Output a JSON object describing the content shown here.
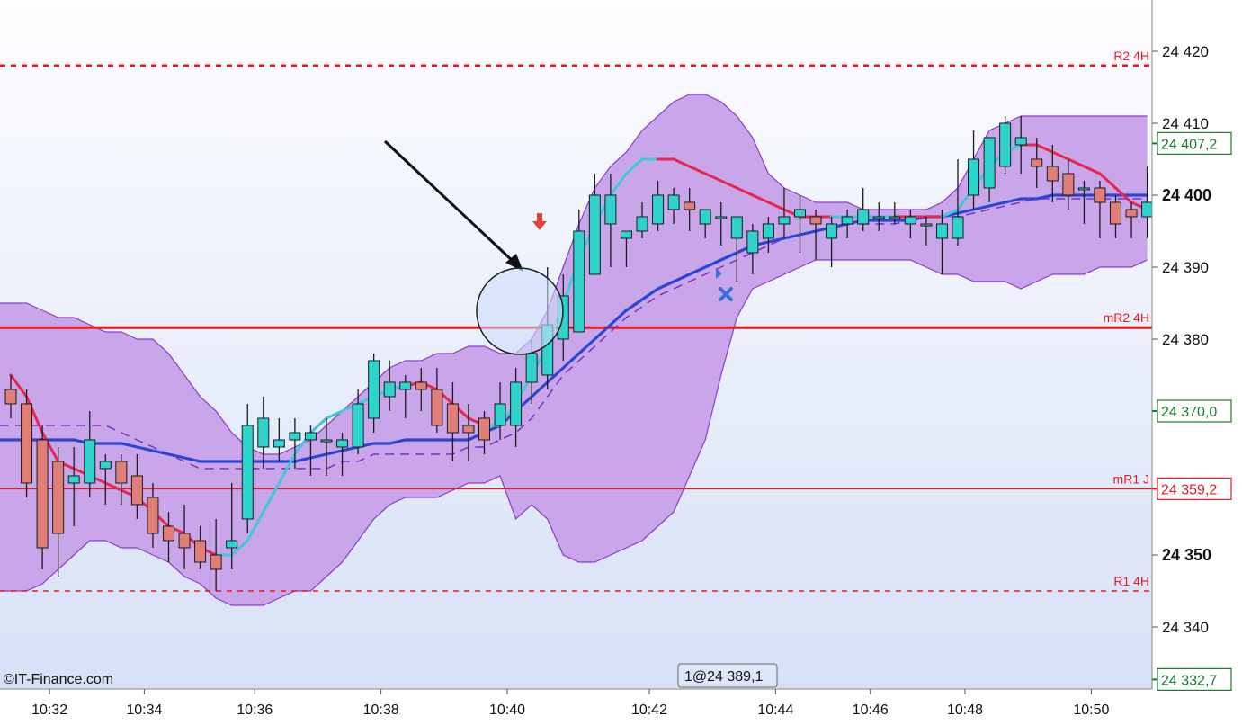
{
  "watermark": "©IT-Finance.com",
  "order_label": "1@24 389,1",
  "colors": {
    "bg_top": "#fdfdff",
    "bg_bottom": "#d6e1f6",
    "band_fill": "#c9a6ea",
    "band_edge": "#8c3cc8",
    "up_candle": "#2fd3cc",
    "down_candle": "#e07f78",
    "ma_blue": "#2b45d6",
    "ma_dash": "#7b2fbf",
    "ma_up": "#40c8d8",
    "ma_down": "#e8274f",
    "level_red": "#e31b23",
    "badge_green": "#1a7a2a"
  },
  "levels": [
    {
      "label": "R2 4H",
      "price": 24418,
      "style": "dashed",
      "weight": 3
    },
    {
      "label": "mR2 4H",
      "price": 24381.6,
      "style": "solid",
      "weight": 3
    },
    {
      "label": "mR1 J",
      "price": 24359.2,
      "style": "solid",
      "weight": 1.5
    },
    {
      "label": "R1 4H",
      "price": 24345,
      "style": "dashed",
      "weight": 1.5
    }
  ],
  "price_badges": [
    {
      "text": "24 407,2",
      "price": 24407.2
    },
    {
      "text": "24 370,0",
      "price": 24370.0
    },
    {
      "text": "24 359,2",
      "price": 24359.2,
      "color": "red"
    },
    {
      "text": "24 332,7",
      "price": 24332.7
    }
  ],
  "chart_data": {
    "type": "candlestick",
    "ylim": [
      24328,
      24428
    ],
    "y_ticks": [
      {
        "price": 24420,
        "label": "24 420",
        "bold": false
      },
      {
        "price": 24410,
        "label": "24 410",
        "bold": false
      },
      {
        "price": 24400,
        "label": "24 400",
        "bold": true
      },
      {
        "price": 24390,
        "label": "24 390",
        "bold": false
      },
      {
        "price": 24380,
        "label": "24 380",
        "bold": false
      },
      {
        "price": 24350,
        "label": "24 350",
        "bold": true
      },
      {
        "price": 24340,
        "label": "24 340",
        "bold": false
      }
    ],
    "x_ticks": [
      {
        "index": 2,
        "label": "10:32"
      },
      {
        "index": 8,
        "label": "10:34"
      },
      {
        "index": 15,
        "label": "10:36"
      },
      {
        "index": 23,
        "label": "10:38"
      },
      {
        "index": 31,
        "label": "10:40"
      },
      {
        "index": 40,
        "label": "10:42"
      },
      {
        "index": 48,
        "label": "10:44"
      },
      {
        "index": 54,
        "label": "10:46"
      },
      {
        "index": 60,
        "label": "10:48"
      },
      {
        "index": 68,
        "label": "10:50"
      }
    ],
    "candles": [
      [
        24373,
        24375,
        24369,
        24371
      ],
      [
        24371,
        24373,
        24358,
        24360
      ],
      [
        24366,
        24368,
        24348,
        24351
      ],
      [
        24363,
        24365,
        24347,
        24353
      ],
      [
        24360,
        24365,
        24354,
        24361
      ],
      [
        24360,
        24370,
        24358,
        24366
      ],
      [
        24362,
        24364,
        24357,
        24363
      ],
      [
        24363,
        24364,
        24357,
        24360
      ],
      [
        24361,
        24364,
        24355,
        24357
      ],
      [
        24358,
        24360,
        24351,
        24353
      ],
      [
        24354,
        24356,
        24349,
        24352
      ],
      [
        24353,
        24357,
        24348,
        24351
      ],
      [
        24352,
        24354,
        24348,
        24349
      ],
      [
        24350,
        24355,
        24345,
        24348
      ],
      [
        24351,
        24360,
        24348,
        24352
      ],
      [
        24355,
        24371,
        24353,
        24368
      ],
      [
        24365,
        24372,
        24362,
        24369
      ],
      [
        24365,
        24369,
        24363,
        24366
      ],
      [
        24366,
        24369,
        24362,
        24367
      ],
      [
        24366,
        24368,
        24361,
        24367
      ],
      [
        24366,
        24369,
        24361,
        24366
      ],
      [
        24365,
        24367,
        24361,
        24366
      ],
      [
        24365,
        24373,
        24364,
        24371
      ],
      [
        24369,
        24378,
        24367,
        24377
      ],
      [
        24372,
        24377,
        24370,
        24374
      ],
      [
        24373,
        24375,
        24369,
        24374
      ],
      [
        24374,
        24376,
        24370,
        24373
      ],
      [
        24373,
        24376,
        24367,
        24368
      ],
      [
        24371,
        24374,
        24363,
        24367
      ],
      [
        24368,
        24371,
        24363,
        24367
      ],
      [
        24369,
        24370,
        24364,
        24366
      ],
      [
        24368,
        24374,
        24366,
        24371
      ],
      [
        24368,
        24376,
        24365,
        24374
      ],
      [
        24374,
        24380,
        24371,
        24378
      ],
      [
        24375,
        24390,
        24373,
        24382
      ],
      [
        24380,
        24389,
        24377,
        24386
      ],
      [
        24381,
        24398,
        24381,
        24395
      ],
      [
        24389,
        24403,
        24389,
        24400
      ],
      [
        24396,
        24403,
        24390,
        24400
      ],
      [
        24394,
        24395,
        24390,
        24395
      ],
      [
        24395,
        24399,
        24394,
        24397
      ],
      [
        24396,
        24402,
        24395,
        24400
      ],
      [
        24398,
        24401,
        24396,
        24400
      ],
      [
        24399,
        24401,
        24395,
        24398
      ],
      [
        24396,
        24398,
        24394,
        24398
      ],
      [
        24397,
        24399,
        24393,
        24397
      ],
      [
        24394,
        24396,
        24388,
        24397
      ],
      [
        24392,
        24396,
        24389,
        24395
      ],
      [
        24394,
        24397,
        24392,
        24396
      ],
      [
        24396,
        24401,
        24394,
        24397
      ],
      [
        24397,
        24400,
        24392,
        24398
      ],
      [
        24397,
        24398,
        24391,
        24396
      ],
      [
        24394,
        24397,
        24390,
        24396
      ],
      [
        24396,
        24398,
        24394,
        24397
      ],
      [
        24396,
        24401,
        24395,
        24398
      ],
      [
        24397,
        24399,
        24395,
        24397
      ],
      [
        24397,
        24399,
        24396,
        24397
      ],
      [
        24396,
        24398,
        24394,
        24397
      ],
      [
        24396,
        24397,
        24393,
        24396
      ],
      [
        24394,
        24398,
        24389,
        24396
      ],
      [
        24394,
        24405,
        24393,
        24397
      ],
      [
        24400,
        24409,
        24398,
        24405
      ],
      [
        24401,
        24408,
        24399,
        24408
      ],
      [
        24404,
        24411,
        24403,
        24410
      ],
      [
        24407,
        24411,
        24403,
        24408
      ],
      [
        24405,
        24408,
        24401,
        24404
      ],
      [
        24404,
        24407,
        24399,
        24402
      ],
      [
        24403,
        24405,
        24398,
        24400
      ],
      [
        24401,
        24402,
        24396,
        24401
      ],
      [
        24401,
        24402,
        24394,
        24399
      ],
      [
        24399,
        24400,
        24394,
        24396
      ],
      [
        24398,
        24399,
        24394,
        24397
      ],
      [
        24397,
        24404,
        24394,
        24399
      ]
    ],
    "bollinger_upper": [
      24385,
      24385,
      24384,
      24383,
      24383,
      24382,
      24381,
      24381,
      24380,
      24380,
      24378,
      24375,
      24372,
      24370,
      24367,
      24365,
      24364,
      24364,
      24365,
      24366,
      24368,
      24370,
      24372,
      24374,
      24376,
      24377,
      24377,
      24378,
      24378,
      24379,
      24379,
      24378,
      24378,
      24380,
      24384,
      24390,
      24396,
      24401,
      24404,
      24406,
      24409,
      24411,
      24413,
      24414,
      24414,
      24413,
      24411,
      24408,
      24403,
      24401,
      24400,
      24399,
      24399,
      24399,
      24398,
      24398,
      24398,
      24398,
      24398,
      24399,
      24401,
      24405,
      24409,
      24410,
      24411,
      24411,
      24411,
      24411,
      24411,
      24411,
      24411,
      24411,
      24411
    ],
    "bollinger_lower": [
      24345,
      24345,
      24346,
      24348,
      24350,
      24352,
      24352,
      24351,
      24351,
      24350,
      24349,
      24347,
      24346,
      24344,
      24343,
      24343,
      24343,
      24344,
      24345,
      24345,
      24347,
      24349,
      24352,
      24355,
      24357,
      24358,
      24358,
      24358,
      24359,
      24360,
      24360,
      24361,
      24355,
      24357,
      24355,
      24350,
      24349,
      24349,
      24350,
      24351,
      24352,
      24354,
      24356,
      24361,
      24366,
      24375,
      24383,
      24387,
      24388,
      24389,
      24390,
      24391,
      24391,
      24391,
      24391,
      24391,
      24391,
      24391,
      24390,
      24389,
      24389,
      24388,
      24388,
      24388,
      24387,
      24388,
      24389,
      24389,
      24389,
      24390,
      24390,
      24390,
      24391
    ],
    "ma_blue": [
      24366,
      24366,
      24366,
      24366,
      24366,
      24365.5,
      24365.5,
      24365.5,
      24365,
      24364.5,
      24364,
      24363.5,
      24363,
      24363,
      24363,
      24363,
      24363,
      24363,
      24363,
      24363.5,
      24364,
      24364.5,
      24365,
      24365.5,
      24365.5,
      24366,
      24366,
      24366,
      24366,
      24366,
      24367,
      24368,
      24370,
      24372,
      24374,
      24376,
      24378,
      24380,
      24382,
      24384,
      24385.5,
      24387,
      24388,
      24389,
      24390,
      24391,
      24392,
      24393,
      24393.5,
      24394,
      24394.5,
      24395,
      24395.5,
      24396,
      24396.5,
      24396.5,
      24396.5,
      24396.5,
      24397,
      24397,
      24397.5,
      24398,
      24398.5,
      24399,
      24399.5,
      24399.5,
      24400,
      24400,
      24400,
      24400,
      24400,
      24400,
      24400
    ],
    "ma_dashed": [
      24368,
      24368,
      24368,
      24368,
      24368,
      24368,
      24368,
      24367,
      24366,
      24365,
      24364,
      24363,
      24362,
      24362,
      24362,
      24362,
      24362,
      24362,
      24362,
      24362,
      24362,
      24363,
      24363,
      24364,
      24364,
      24364,
      24364,
      24364,
      24364,
      24365,
      24365,
      24366,
      24367,
      24369,
      24372,
      24375,
      24377,
      24379,
      24381,
      24383,
      24384.5,
      24386,
      24387,
      24388,
      24389,
      24390,
      24391,
      24392,
      24393,
      24394,
      24394.5,
      24395,
      24395.5,
      24396,
      24396,
      24396,
      24396,
      24396.5,
      24397,
      24397,
      24397,
      24397.5,
      24398,
      24398.5,
      24399,
      24399.5,
      24399.5,
      24399.5,
      24399.5,
      24399.5,
      24399.5,
      24399.5,
      24399.5
    ],
    "ma_fast": [
      24375,
      24372,
      24367,
      24363,
      24362,
      24361,
      24360,
      24359,
      24358,
      24356,
      24354,
      24353,
      24351,
      24350,
      24350,
      24352,
      24356,
      24360,
      24364,
      24367,
      24369,
      24370,
      24371,
      24372,
      24373,
      24373.5,
      24374,
      24373,
      24371,
      24369,
      24368,
      24368,
      24371,
      24375,
      24379,
      24385,
      24391,
      24396,
      24400,
      24403,
      24405,
      24405,
      24405,
      24404,
      24403,
      24402,
      24401,
      24400,
      24399,
      24398,
      24397,
      24397,
      24397,
      24397,
      24397,
      24397,
      24397,
      24397,
      24397,
      24397,
      24398,
      24401,
      24404,
      24406,
      24407,
      24407,
      24406,
      24405,
      24404,
      24403,
      24401,
      24399,
      24398
    ],
    "ma_fast_rising": [
      false,
      false,
      false,
      false,
      false,
      false,
      false,
      false,
      false,
      false,
      false,
      false,
      false,
      false,
      true,
      true,
      true,
      true,
      true,
      true,
      true,
      true,
      true,
      true,
      true,
      true,
      false,
      false,
      false,
      false,
      false,
      true,
      true,
      true,
      true,
      true,
      true,
      true,
      true,
      true,
      true,
      true,
      false,
      false,
      false,
      false,
      false,
      false,
      false,
      false,
      false,
      false,
      false,
      true,
      true,
      true,
      true,
      false,
      false,
      false,
      true,
      true,
      true,
      true,
      true,
      false,
      false,
      false,
      false,
      false,
      false,
      false,
      false
    ]
  }
}
